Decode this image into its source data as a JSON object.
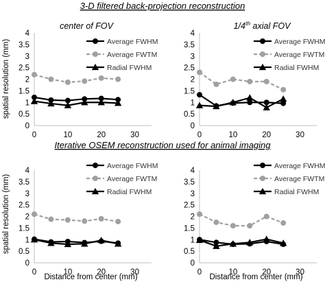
{
  "headers": {
    "top": "3-D filtered back-projection reconstruction",
    "bottom": "Iterative OSEM reconstruction used for animal imaging"
  },
  "ylabel": "spatial resolution (mm)",
  "xlabel": "Distance from center (mm)",
  "legend_labels": [
    "Average FWHM",
    "Average FWTM",
    "Radial FWHM"
  ],
  "colors": {
    "fwhm": "#000000",
    "fwtm": "#a0a0a0",
    "radial": "#000000"
  },
  "chart_data": [
    {
      "type": "line",
      "title": "center of FOV",
      "xlabel": "",
      "ylabel": "spatial resolution (mm)",
      "xlim": [
        0,
        35
      ],
      "ylim": [
        0,
        4
      ],
      "xticks": [
        0,
        10,
        20,
        30
      ],
      "yticks": [
        0,
        0.5,
        1,
        1.5,
        2,
        2.5,
        3,
        3.5,
        4
      ],
      "legend": "top-right",
      "grid": false,
      "x": [
        0,
        5,
        10,
        15,
        20,
        25
      ],
      "series": [
        {
          "name": "Average FWHM",
          "values": [
            1.22,
            1.1,
            1.08,
            1.15,
            1.17,
            1.12
          ],
          "style": "solid",
          "marker": "circle"
        },
        {
          "name": "Average FWTM",
          "values": [
            2.2,
            2.0,
            1.87,
            1.92,
            2.05,
            2.0
          ],
          "style": "dashed",
          "marker": "circle"
        },
        {
          "name": "Radial FWHM",
          "values": [
            1.05,
            0.95,
            0.87,
            1.0,
            1.0,
            0.97
          ],
          "style": "solid",
          "marker": "triangle"
        }
      ]
    },
    {
      "type": "line",
      "title": "1/4th axial FOV",
      "title_parts": {
        "pre": "1/4",
        "sup": "th",
        "post": " axial FOV"
      },
      "xlabel": "",
      "ylabel": "",
      "xlim": [
        0,
        35
      ],
      "ylim": [
        0,
        4
      ],
      "xticks": [
        0,
        10,
        20,
        30
      ],
      "yticks": [
        0,
        0.5,
        1,
        1.5,
        2,
        2.5,
        3,
        3.5,
        4
      ],
      "legend": "top-right",
      "grid": false,
      "x": [
        0,
        5,
        10,
        15,
        20,
        25
      ],
      "series": [
        {
          "name": "Average FWHM",
          "values": [
            1.33,
            0.85,
            0.97,
            1.0,
            1.0,
            0.96
          ],
          "style": "solid",
          "marker": "circle"
        },
        {
          "name": "Average FWTM",
          "values": [
            2.3,
            1.78,
            2.0,
            1.9,
            1.9,
            1.55
          ],
          "style": "dashed",
          "marker": "circle"
        },
        {
          "name": "Radial FWHM",
          "values": [
            0.87,
            0.83,
            1.0,
            1.2,
            0.78,
            1.15
          ],
          "style": "solid",
          "marker": "triangle"
        }
      ]
    },
    {
      "type": "line",
      "title": "",
      "xlabel": "Distance from center (mm)",
      "ylabel": "spatial resolution (mm)",
      "xlim": [
        0,
        35
      ],
      "ylim": [
        0,
        4
      ],
      "xticks": [
        0,
        10,
        20,
        30
      ],
      "yticks": [
        0,
        0.5,
        1,
        1.5,
        2,
        2.5,
        3,
        3.5,
        4
      ],
      "legend": "top-right",
      "grid": false,
      "x": [
        0,
        5,
        10,
        15,
        20,
        25
      ],
      "series": [
        {
          "name": "Average FWHM",
          "values": [
            1.02,
            0.9,
            0.92,
            0.87,
            0.93,
            0.85
          ],
          "style": "solid",
          "marker": "circle"
        },
        {
          "name": "Average FWTM",
          "values": [
            2.1,
            1.88,
            1.85,
            1.8,
            1.9,
            1.78
          ],
          "style": "dashed",
          "marker": "circle"
        },
        {
          "name": "Radial FWHM",
          "values": [
            1.0,
            0.85,
            0.8,
            0.82,
            0.97,
            0.82
          ],
          "style": "solid",
          "marker": "triangle"
        }
      ]
    },
    {
      "type": "line",
      "title": "",
      "xlabel": "Distance from center (mm)",
      "ylabel": "",
      "xlim": [
        0,
        35
      ],
      "ylim": [
        0,
        4
      ],
      "xticks": [
        0,
        10,
        20,
        30
      ],
      "yticks": [
        0,
        0.5,
        1,
        1.5,
        2,
        2.5,
        3,
        3.5,
        4
      ],
      "legend": "top-right",
      "grid": false,
      "x": [
        0,
        5,
        10,
        15,
        20,
        25
      ],
      "series": [
        {
          "name": "Average FWHM",
          "values": [
            1.0,
            0.88,
            0.8,
            0.82,
            0.92,
            0.8
          ],
          "style": "solid",
          "marker": "circle"
        },
        {
          "name": "Average FWTM",
          "values": [
            2.1,
            1.75,
            1.6,
            1.6,
            2.0,
            1.72
          ],
          "style": "dashed",
          "marker": "circle"
        },
        {
          "name": "Radial FWHM",
          "values": [
            0.98,
            0.72,
            0.82,
            0.88,
            1.02,
            0.85
          ],
          "style": "solid",
          "marker": "triangle"
        }
      ]
    }
  ]
}
